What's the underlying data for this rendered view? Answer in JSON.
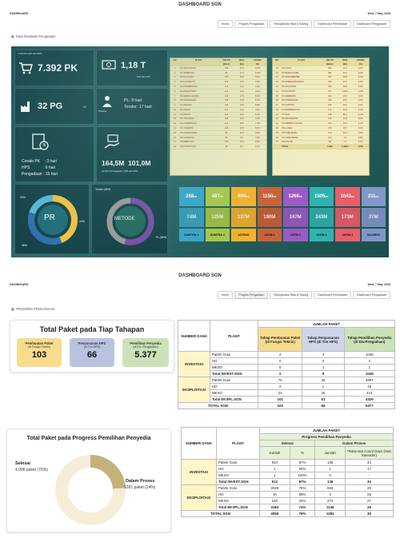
{
  "common": {
    "title": "DASHBOARD SGN",
    "left_label": "DASHBOARD",
    "date": "Wed, 7 May 2025",
    "tabs": [
      "Home",
      "Progres Pengadaan",
      "Rekapitulasi Nilai & Saving",
      "Dashboard Perbekalan",
      "Dashboard Pengadaan"
    ]
  },
  "s1": {
    "section": "Data Realisasi Pengadaan",
    "pk_caption": "5.000 PP (10% dari 2025)",
    "pk_value": "7.392 PK",
    "money_value": "1,18 T",
    "money_caption": "60% dari 2023",
    "pg_value": "32 PG",
    "pg_suffix": "+1",
    "pl_line": "PL: 8 hari",
    "tender_line": "Tender: 17 hari",
    "person_label": "Pecahan",
    "create_pk": "Create PK    : 3 hari",
    "hps": "HPS            : 6 hari",
    "pengadaan": "Pengadaan : 15 hari",
    "hps_values": "164,5M  101,0M",
    "hps_caption": "(12,2% Thd Anggaran) (7,8% dari HPS)",
    "pr": {
      "center": "PR",
      "p20": "20%",
      "p44": "44%",
      "p36": "36%"
    },
    "metode": {
      "center": "METODE",
      "tender": "Tender (46%)",
      "pl": "PL (54%)"
    },
    "table_head": [
      "NO",
      "PLANT",
      "JML PK",
      "REAL",
      "SAVING"
    ],
    "table_head_sub": [
      "",
      "",
      "(Baris)",
      "(Bn)",
      "(%)"
    ],
    "table_left": [
      [
        "1",
        "PG WALIKUKUN",
        "234",
        "40,3",
        "11,0%"
      ],
      [
        "2",
        "PG SEMBORO",
        "86",
        "27,5",
        "11,0%"
      ],
      [
        "3",
        "PG RAJAWALI",
        "120",
        "34,2",
        "5,5%"
      ],
      [
        "4",
        "PG DJATIROTO",
        "113",
        "23,0",
        "3,0%"
      ],
      [
        "5",
        "PG KREMBOONG",
        "172",
        "14,0",
        "4,0%"
      ],
      [
        "6",
        "PG PESANTREN",
        "121",
        "13,2",
        "3,2%"
      ],
      [
        "7",
        "PG KEBON AGUNG",
        "144",
        "17,5",
        "8,4%"
      ],
      [
        "8",
        "PG PRADJEKAN",
        "136",
        "21,8",
        "5,4%"
      ],
      [
        "9",
        "PG KENDAL",
        "131",
        "13,5",
        "5,8%"
      ],
      [
        "10",
        "PG NGADI",
        "127",
        "14,4",
        "3,9%"
      ],
      [
        "11",
        "PG REDJO",
        "114",
        "15,0",
        "3,4%"
      ],
      [
        "12",
        "PG TRANGKIL",
        "118",
        "10,5",
        "4,2%"
      ],
      [
        "13",
        "PG ASEMBAGUS",
        "101",
        "18,0",
        "7,4%"
      ],
      [
        "14",
        "PG TOERSINI",
        "103",
        "10,8",
        "5,5%"
      ],
      [
        "15",
        "PG KEDAWOENG",
        "96",
        "11,0",
        "4,6%"
      ],
      [
        "16",
        "PG GONDANG",
        "86",
        "9,2",
        "4,0%"
      ],
      [
        "17",
        "PG MERITJAN",
        "123",
        "16,2",
        "2,8%"
      ],
      [
        "18",
        "KANTOR PUSAT",
        "38",
        "10,7",
        "2,1%"
      ]
    ],
    "table_right": [
      [
        "19",
        "PG CINTA",
        "181",
        "31,1",
        "4,6%"
      ],
      [
        "20",
        "PG BUNGAIJOBE",
        "285",
        "60,2",
        "8,2%"
      ],
      [
        "21",
        "PG WONOMBOBE",
        "184",
        "39,0",
        "3,1%"
      ],
      [
        "22",
        "PG SOEDHONO BARU",
        "236",
        "36,2",
        "3,3%"
      ],
      [
        "23",
        "PG MOJOSARI",
        "190",
        "38,8",
        "5,8%"
      ],
      [
        "24",
        "PG DJATIOTO",
        "477",
        "126,8",
        "3,4%"
      ],
      [
        "25",
        "PG SEMBORO",
        "103",
        "18,5",
        "3,4%"
      ],
      [
        "26",
        "PG PURWODADI",
        "234",
        "18,0",
        "2,4%"
      ],
      [
        "27",
        "PG SAMOSO",
        "152",
        "16,2",
        "2,4%"
      ],
      [
        "28",
        "PG NGIMBANGOG",
        "172",
        "40,4",
        "6,6%"
      ],
      [
        "29",
        "PT SGN",
        "128",
        "80,3",
        "11,9%"
      ],
      [
        "30",
        "PG PRADJEKAN",
        "142",
        "31,8",
        "8,2%"
      ],
      [
        "31",
        "PG MERBUN AGUNG",
        "133",
        "15,3",
        "3,2%"
      ],
      [
        "32",
        "PG LASEM",
        "136",
        "18,7",
        "5,3%"
      ],
      [
        "33",
        "PG TASIKMADU",
        "170",
        "11,0",
        "2,6%"
      ],
      [
        "34",
        "PG CANDI BARU",
        "162",
        "7,0",
        "2,8%"
      ],
      [
        "35",
        "PG KALIJIE",
        "88",
        "7,1",
        "2,1%"
      ]
    ],
    "table_total": [
      "TOTAL",
      "7.392",
      "1.180,7",
      "3,5%"
    ],
    "regions": {
      "row1": [
        "268",
        "487",
        "994",
        "1150",
        "1266",
        "1505",
        "1043",
        "211"
      ],
      "row2": [
        "74M",
        "125M",
        "137M",
        "190M",
        "167M",
        "243M",
        "173M",
        "37M"
      ],
      "names": [
        "SUMTRA 1",
        "SUMTRA 2",
        "JATENG",
        "JATIM 1",
        "JATIM 2",
        "JATIM 3",
        "JATIM 4",
        "SULWESI"
      ],
      "colors": [
        "#3aa6c8",
        "#a7c94a",
        "#f2b12e",
        "#c9633a",
        "#9a5cc4",
        "#2fb3b0",
        "#e65f6a",
        "#7f98c8"
      ],
      "suffix": "PK"
    }
  },
  "s2": {
    "section": "PROGRES PENGADAAN",
    "stages_title": "Total Paket pada Tiap Tahapan",
    "stages": [
      {
        "label": "Pembuatan Paket",
        "sub": "(di Fungsi Teknis)",
        "value": "103",
        "color": "#f7dc8e"
      },
      {
        "label": "Penyusunan HPS",
        "sub": "(di Tim HPS)",
        "value": "66",
        "color": "#b9c3e0"
      },
      {
        "label": "Pemilihan Penyedia",
        "sub": "(di Div. Pengadaan)",
        "value": "5.377",
        "color": "#cbe2b8"
      }
    ],
    "donut_title": "Total Paket pada Progress Pemilihan Penyedia",
    "donut": {
      "selesai_label": "Selesai",
      "selesai_value": "4.096 paket (76%)",
      "proses_label": "Dalam Proses",
      "proses_value": "1281 paket (24%)",
      "selesai_pct": 76,
      "proses_pct": 24
    },
    "t1": {
      "jumlah": "JUMLAH PAKET",
      "h_sumber": "SUMBER DANA",
      "h_plant": "PLANT",
      "h1": "Tahap Pembuatan Paket (di Fungsi Teknis)",
      "h2": "Tahap Penyusunan HPS (di Tim HPS)",
      "h3": "Tahap Pemilihan Penyedia (di Div.Pengadaan)",
      "investasi": "INVESTASI",
      "eksploitasi": "EKSPLOITASI",
      "rows_inv": [
        [
          "Pabrik Gula",
          "2",
          "4",
          "1045"
        ],
        [
          "HO",
          "0",
          "0",
          "2"
        ],
        [
          "MKSO",
          "0",
          "1",
          "1"
        ]
      ],
      "tot_inv": [
        "Total INVEST.SGN",
        "2",
        "5",
        "1048"
      ],
      "rows_eks": [
        [
          "Pabrik Gula",
          "75",
          "35",
          "3897"
        ],
        [
          "HO",
          "2",
          "1",
          "18"
        ],
        [
          "MKSO",
          "24",
          "25",
          "414"
        ]
      ],
      "tot_eks": [
        "Total EKSPL.SGN",
        "101",
        "61",
        "4329"
      ],
      "tot_sgn": [
        "TOTAL SGN",
        "103",
        "66",
        "5377"
      ]
    },
    "t2": {
      "jumlah": "JUMLAH PAKET",
      "progress": "Progress Pemilihan Penyedia",
      "h_sumber": "SUMBER DANA",
      "h_plant": "PLANT",
      "selesai": "Selesai",
      "dalam": "Dalam Proses",
      "h_jumlah": "Jumlah",
      "h_pct": "%",
      "h_jumlah2": "Jumlah",
      "h_avg": "*Rata-rata Count Days (Hari Kalender)",
      "investasi": "INVESTASI",
      "eksploitasi": "EKSPLOITASI",
      "rows_inv": [
        [
          "Pabrik Gula",
          "910",
          "87%",
          "135",
          "34"
        ],
        [
          "HO",
          "1",
          "50%",
          "1",
          "17"
        ],
        [
          "MKSO",
          "1",
          "100%",
          "0",
          "-"
        ]
      ],
      "tot_inv": [
        "Total INVEST.SGN",
        "912",
        "87%",
        "136",
        "34"
      ],
      "rows_eks": [
        [
          "Pabrik Gula",
          "3028",
          "78%",
          "869",
          "26"
        ],
        [
          "HO",
          "16",
          "89%",
          "2",
          "26"
        ],
        [
          "MKSO",
          "140",
          "34%",
          "274",
          "27"
        ]
      ],
      "tot_eks": [
        "Total EKSPL.SGN",
        "3184",
        "74%",
        "1145",
        "26"
      ],
      "tot_sgn": [
        "TOTAL SGN",
        "4096",
        "76%",
        "1281",
        "30"
      ]
    }
  }
}
